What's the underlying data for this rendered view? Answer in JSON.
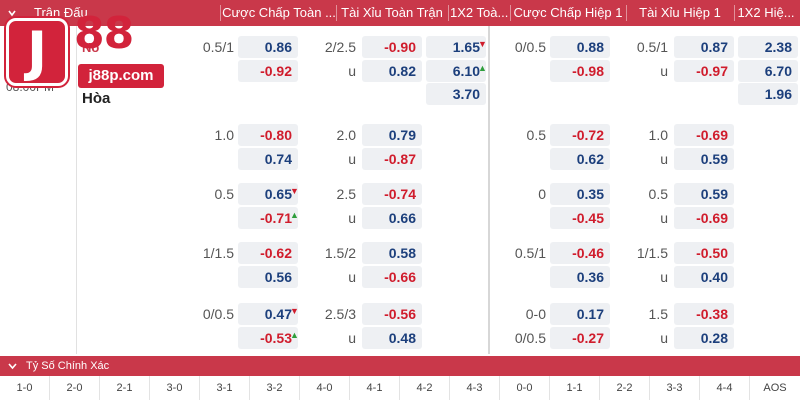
{
  "header": {
    "match_label": "Trận Đấu",
    "cols": [
      "Cược Chấp Toàn ...",
      "Tài Xỉu Toàn Trận",
      "1X2 Toà...",
      "Cược Chấp Hiệp 1",
      "Tài Xỉu Hiệp 1",
      "1X2 Hiệ..."
    ]
  },
  "match": {
    "time": "08:00PM",
    "team_partial": "No",
    "draw_label": "Hòa"
  },
  "logo": {
    "j": "J",
    "num": "88",
    "url": "j88p.com"
  },
  "rows": [
    {
      "ft_hdp": "0.5/1",
      "ft_hdp_top": "0.86",
      "ft_hdp_bot": "-0.92",
      "ft_ou": "2/2.5",
      "ft_ou_top": "-0.90",
      "ft_ou_u": "u",
      "ft_ou_bot": "0.82",
      "ft_1x2": [
        "1.65",
        "6.10",
        "3.70"
      ],
      "h1_hdp": "0/0.5",
      "h1_hdp_top": "0.88",
      "h1_hdp_bot": "-0.98",
      "h1_ou": "0.5/1",
      "h1_ou_top": "0.87",
      "h1_ou_u": "u",
      "h1_ou_bot": "-0.97",
      "h1_1x2": [
        "2.38",
        "6.70",
        "1.96"
      ]
    },
    {
      "ft_hdp": "1.0",
      "ft_hdp_top": "-0.80",
      "ft_hdp_bot": "0.74",
      "ft_ou": "2.0",
      "ft_ou_top": "0.79",
      "ft_ou_u": "u",
      "ft_ou_bot": "-0.87",
      "h1_hdp": "0.5",
      "h1_hdp_top": "-0.72",
      "h1_hdp_bot": "0.62",
      "h1_ou": "1.0",
      "h1_ou_top": "-0.69",
      "h1_ou_u": "u",
      "h1_ou_bot": "0.59"
    },
    {
      "ft_hdp": "0.5",
      "ft_hdp_top": "0.65",
      "ft_hdp_bot": "-0.71",
      "ft_ou": "2.5",
      "ft_ou_top": "-0.74",
      "ft_ou_u": "u",
      "ft_ou_bot": "0.66",
      "h1_hdp": "0",
      "h1_hdp_top": "0.35",
      "h1_hdp_bot": "-0.45",
      "h1_ou": "0.5",
      "h1_ou_top": "0.59",
      "h1_ou_u": "u",
      "h1_ou_bot": "-0.69"
    },
    {
      "ft_hdp": "1/1.5",
      "ft_hdp_top": "-0.62",
      "ft_hdp_bot": "0.56",
      "ft_ou": "1.5/2",
      "ft_ou_top": "0.58",
      "ft_ou_u": "u",
      "ft_ou_bot": "-0.66",
      "h1_hdp": "0.5/1",
      "h1_hdp_top": "-0.46",
      "h1_hdp_bot": "0.36",
      "h1_ou": "1/1.5",
      "h1_ou_top": "-0.50",
      "h1_ou_u": "u",
      "h1_ou_bot": "0.40"
    },
    {
      "ft_hdp": "0/0.5",
      "ft_hdp_top": "0.47",
      "ft_hdp_bot": "-0.53",
      "ft_ou": "2.5/3",
      "ft_ou_top": "-0.56",
      "ft_ou_u": "u",
      "ft_ou_bot": "0.48",
      "h1_hdp": "0-0",
      "h1_hdp_top": "0.17",
      "h1_hdp_bot": "-0.27",
      "h1_hdp_bot_label": "0/0.5",
      "h1_ou": "1.5",
      "h1_ou_top": "-0.38",
      "h1_ou_u": "u",
      "h1_ou_bot": "0.28"
    }
  ],
  "exact_score": {
    "label": "Tỷ Số Chính Xác",
    "scores": [
      "1-0",
      "2-0",
      "2-1",
      "3-0",
      "3-1",
      "3-2",
      "4-0",
      "4-1",
      "4-2",
      "4-3",
      "0-0",
      "1-1",
      "2-2",
      "3-3",
      "4-4",
      "AOS"
    ]
  },
  "colors": {
    "header": "#c9384a",
    "positive": "#1c3f7c",
    "negative": "#d01c2c",
    "up": "#2e9e3c"
  },
  "icons": {
    "collapse": "chevron-down-icon",
    "up": "arrow-up-icon",
    "down": "arrow-down-icon"
  }
}
